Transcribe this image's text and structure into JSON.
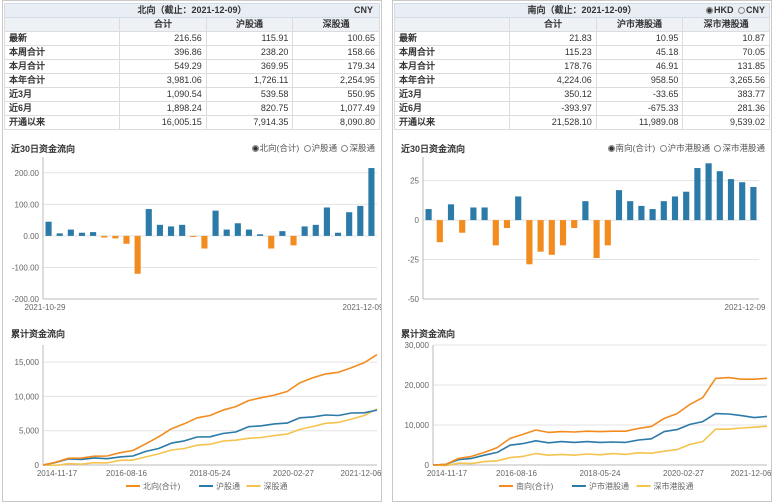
{
  "north": {
    "title": "北向（截止：2021-12-09）",
    "unit": "CNY",
    "columns": [
      "合计",
      "沪股通",
      "深股通"
    ],
    "rows": [
      {
        "label": "最新",
        "v": [
          "216.56",
          "115.91",
          "100.65"
        ]
      },
      {
        "label": "本周合计",
        "v": [
          "396.86",
          "238.20",
          "158.66"
        ]
      },
      {
        "label": "本月合计",
        "v": [
          "549.29",
          "369.95",
          "179.34"
        ]
      },
      {
        "label": "本年合计",
        "v": [
          "3,981.06",
          "1,726.11",
          "2,254.95"
        ]
      },
      {
        "label": "近3月",
        "v": [
          "1,090.54",
          "539.58",
          "550.95"
        ]
      },
      {
        "label": "近6月",
        "v": [
          "1,898.24",
          "820.75",
          "1,077.49"
        ]
      },
      {
        "label": "开通以来",
        "v": [
          "16,005.15",
          "7,914.35",
          "8,090.80"
        ]
      }
    ],
    "flow_title": "近30日资金流向",
    "flow_options": [
      "北向(合计)",
      "沪股通",
      "深股通"
    ],
    "cum_title": "累计资金流向"
  },
  "south": {
    "title": "南向（截止：2021-12-09）",
    "currency_options": [
      "HKD",
      "CNY"
    ],
    "columns": [
      "合计",
      "沪市港股通",
      "深市港股通"
    ],
    "rows": [
      {
        "label": "最新",
        "v": [
          "21.83",
          "10.95",
          "10.87"
        ]
      },
      {
        "label": "本周合计",
        "v": [
          "115.23",
          "45.18",
          "70.05"
        ]
      },
      {
        "label": "本月合计",
        "v": [
          "178.76",
          "46.91",
          "131.85"
        ]
      },
      {
        "label": "本年合计",
        "v": [
          "4,224.06",
          "958.50",
          "3,265.56"
        ]
      },
      {
        "label": "近3月",
        "v": [
          "350.12",
          "-33.65",
          "383.77"
        ]
      },
      {
        "label": "近6月",
        "v": [
          "-393.97",
          "-675.33",
          "281.36"
        ]
      },
      {
        "label": "开通以来",
        "v": [
          "21,528.10",
          "11,989.08",
          "9,539.02"
        ]
      }
    ],
    "flow_title": "近30日资金流向",
    "flow_options": [
      "南向(合计)",
      "沪市港股通",
      "深市港股通"
    ],
    "cum_title": "累计资金流向"
  },
  "chart_data": [
    {
      "id": "north-30d",
      "type": "bar",
      "title": "近30日资金流向",
      "ylim": [
        -200,
        250
      ],
      "yticks": [
        "-200.00",
        "-100.00",
        "0.00",
        "100.00",
        "200.00"
      ],
      "x_start": "2021-10-29",
      "x_end": "2021-12-09",
      "values": [
        45,
        8,
        20,
        10,
        12,
        -5,
        -8,
        -25,
        -120,
        85,
        35,
        30,
        35,
        -2,
        -40,
        80,
        20,
        40,
        20,
        5,
        -40,
        15,
        -30,
        30,
        35,
        90,
        10,
        75,
        95,
        215
      ],
      "colors": {
        "pos": "#2b7aa8",
        "neg": "#f28c1f"
      }
    },
    {
      "id": "south-30d",
      "type": "bar",
      "title": "近30日资金流向",
      "ylim": [
        -50,
        40
      ],
      "yticks": [
        "-50",
        "-25",
        "0",
        "25",
        "50"
      ],
      "x_start": "",
      "x_end": "2021-12-09",
      "values": [
        7,
        -14,
        10,
        -8,
        8,
        8,
        -16,
        -5,
        15,
        -28,
        -20,
        -22,
        -16,
        -5,
        12,
        -24,
        -16,
        19,
        12,
        9,
        7,
        12,
        15,
        18,
        33,
        36,
        31,
        26,
        24,
        21
      ],
      "colors": {
        "pos": "#2b7aa8",
        "neg": "#f28c1f"
      }
    },
    {
      "id": "north-cum",
      "type": "line",
      "title": "累计资金流向",
      "ylim": [
        0,
        17500
      ],
      "yticks": [
        "0",
        "5,000",
        "10,000",
        "15,000"
      ],
      "xticks": [
        "2014-11-17",
        "2016-08-16",
        "2018-05-24",
        "2020-02-27",
        "2021-12-06"
      ],
      "series": [
        {
          "name": "北向(合计)",
          "color": "#f28c1f",
          "values": [
            0,
            500,
            900,
            1100,
            1200,
            1400,
            1700,
            2200,
            3000,
            4200,
            5200,
            6100,
            6800,
            7300,
            7900,
            8600,
            9300,
            9900,
            10100,
            10800,
            11900,
            12800,
            13200,
            13600,
            14100,
            15000,
            16005
          ]
        },
        {
          "name": "沪股通",
          "color": "#2b7aa8",
          "values": [
            0,
            450,
            800,
            900,
            950,
            1000,
            1100,
            1400,
            1900,
            2500,
            3100,
            3600,
            4000,
            4200,
            4500,
            4900,
            5500,
            5800,
            5900,
            6200,
            6800,
            7100,
            7200,
            7300,
            7500,
            7700,
            7914
          ]
        },
        {
          "name": "深股通",
          "color": "#f4c44e",
          "values": [
            0,
            50,
            100,
            200,
            250,
            400,
            600,
            800,
            1100,
            1700,
            2100,
            2500,
            2800,
            3100,
            3400,
            3700,
            3800,
            4100,
            4200,
            4600,
            5100,
            5700,
            6000,
            6300,
            6600,
            7300,
            8091
          ]
        }
      ]
    },
    {
      "id": "south-cum",
      "type": "line",
      "title": "累计资金流向",
      "ylim": [
        0,
        30000
      ],
      "yticks": [
        "0",
        "10,000",
        "20,000",
        "30,000"
      ],
      "xticks": [
        "2014-11-17",
        "2016-08-16",
        "2018-05-24",
        "2020-02-27",
        "2021-12-06"
      ],
      "series": [
        {
          "name": "南向(合计)",
          "color": "#f28c1f",
          "values": [
            0,
            300,
            1500,
            2300,
            3000,
            4500,
            6500,
            7800,
            8600,
            8300,
            8200,
            8400,
            8300,
            8500,
            8300,
            8600,
            9000,
            9800,
            11500,
            13000,
            15000,
            17000,
            21500,
            22000,
            21300,
            21600,
            21528
          ]
        },
        {
          "name": "沪市港股通",
          "color": "#2b7aa8",
          "values": [
            0,
            300,
            1200,
            1800,
            2300,
            3300,
            4800,
            5500,
            5900,
            5700,
            5700,
            5800,
            5700,
            5800,
            5600,
            5800,
            6100,
            6700,
            8200,
            9000,
            10000,
            11000,
            12700,
            12900,
            12200,
            12000,
            11989
          ]
        },
        {
          "name": "深市港股通",
          "color": "#f4c44e",
          "values": [
            0,
            0,
            300,
            500,
            700,
            1200,
            1700,
            2300,
            2700,
            2600,
            2500,
            2600,
            2600,
            2700,
            2700,
            2800,
            2900,
            3100,
            3300,
            4000,
            5000,
            6000,
            8800,
            9100,
            9100,
            9600,
            9539
          ]
        }
      ]
    }
  ]
}
